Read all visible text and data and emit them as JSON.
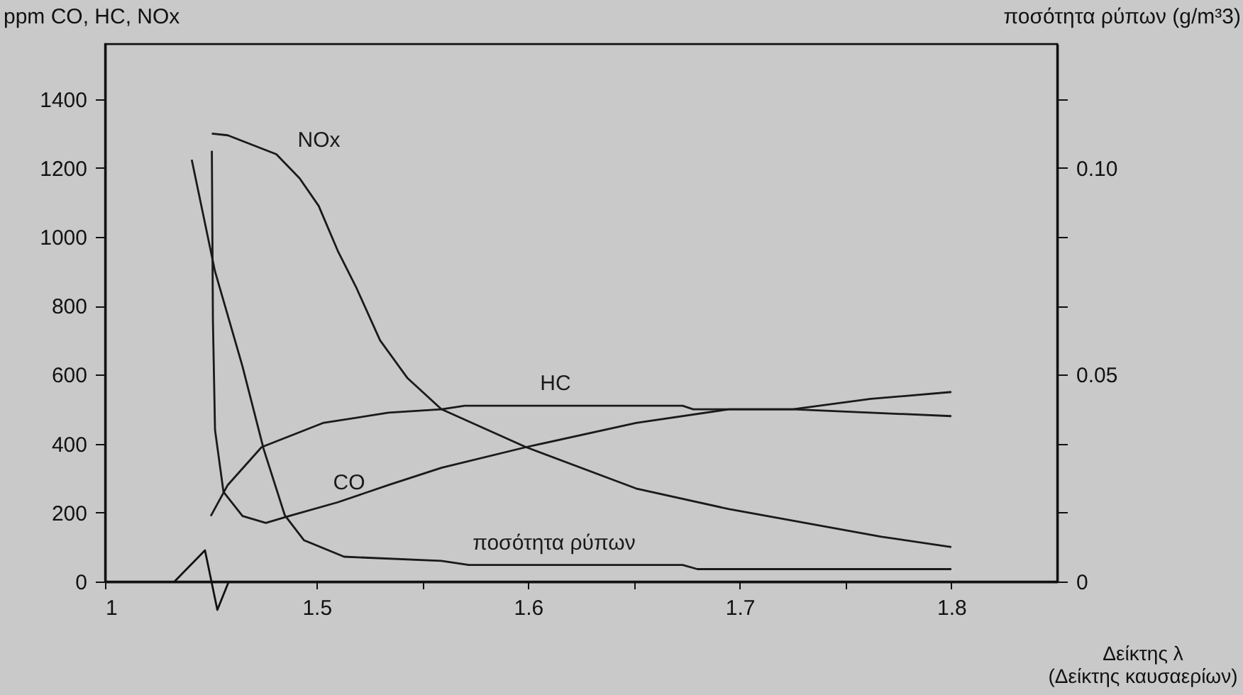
{
  "chart_data": {
    "type": "line",
    "xlabel": "Δείκτης λ\n(Δείκτης καυσαερίων)",
    "ylabel": "ppm CO, HC, NOx",
    "y2label": "ποσότητα ρύπων (g/m³3)",
    "xlim": [
      1.4,
      1.85
    ],
    "xticks": [
      {
        "value": 1.4,
        "label": "1"
      },
      1.5,
      {
        "value": 1.55,
        "label": null
      },
      1.6,
      {
        "value": 1.65,
        "label": null
      },
      1.7,
      {
        "value": 1.75,
        "label": null
      },
      1.8
    ],
    "ylim": [
      0,
      1560
    ],
    "yticks": [
      0,
      200,
      400,
      600,
      800,
      1000,
      1200,
      1400
    ],
    "y2lim": [
      0,
      0.13
    ],
    "y2ticks": [
      0,
      {
        "value": 0.0167,
        "label": null
      },
      {
        "value": 0.0333,
        "label": null
      },
      0.05,
      {
        "value": 0.0667,
        "label": null
      },
      {
        "value": 0.0833,
        "label": null
      },
      {
        "value": 0.1,
        "label": "0.10"
      },
      {
        "value": 0.1167,
        "label": null
      }
    ],
    "grid": false,
    "legend": false,
    "marker": "none",
    "line_style": "solid",
    "series": [
      {
        "name": "NOx",
        "color": "#1a1a1a",
        "x": [
          1.4505,
          1.458,
          1.481,
          1.492,
          1.501,
          1.51,
          1.519,
          1.53,
          1.543,
          1.559,
          1.599,
          1.651,
          1.695,
          1.767,
          1.8
        ],
        "values": [
          1300,
          1295,
          1240,
          1170,
          1090,
          960,
          850,
          700,
          590,
          500,
          390,
          270,
          210,
          130,
          100
        ]
      },
      {
        "name": "HC",
        "color": "#1a1a1a",
        "x": [
          1.45,
          1.458,
          1.474,
          1.503,
          1.534,
          1.559,
          1.57,
          1.673,
          1.678,
          1.725,
          1.762,
          1.8
        ],
        "values": [
          190,
          280,
          390,
          460,
          490,
          500,
          510,
          510,
          500,
          500,
          530,
          550
        ]
      },
      {
        "name": "CO",
        "color": "#1a1a1a",
        "x": [
          1.4505,
          1.451,
          1.452,
          1.456,
          1.465,
          1.476,
          1.487,
          1.51,
          1.534,
          1.559,
          1.599,
          1.651,
          1.695,
          1.725,
          1.8
        ],
        "values": [
          1250,
          760,
          440,
          260,
          190,
          170,
          190,
          230,
          280,
          330,
          390,
          460,
          500,
          500,
          480
        ]
      },
      {
        "name": "ποσότητα ρύπων",
        "color": "#1a1a1a",
        "axis": "y2",
        "x": [
          1.441,
          1.452,
          1.465,
          1.475,
          1.485,
          1.494,
          1.513,
          1.559,
          1.572,
          1.673,
          1.68,
          1.8
        ],
        "values": [
          0.102,
          0.075,
          0.052,
          0.032,
          0.016,
          0.01,
          0.006,
          0.005,
          0.004,
          0.004,
          0.003,
          0.003
        ]
      }
    ]
  }
}
